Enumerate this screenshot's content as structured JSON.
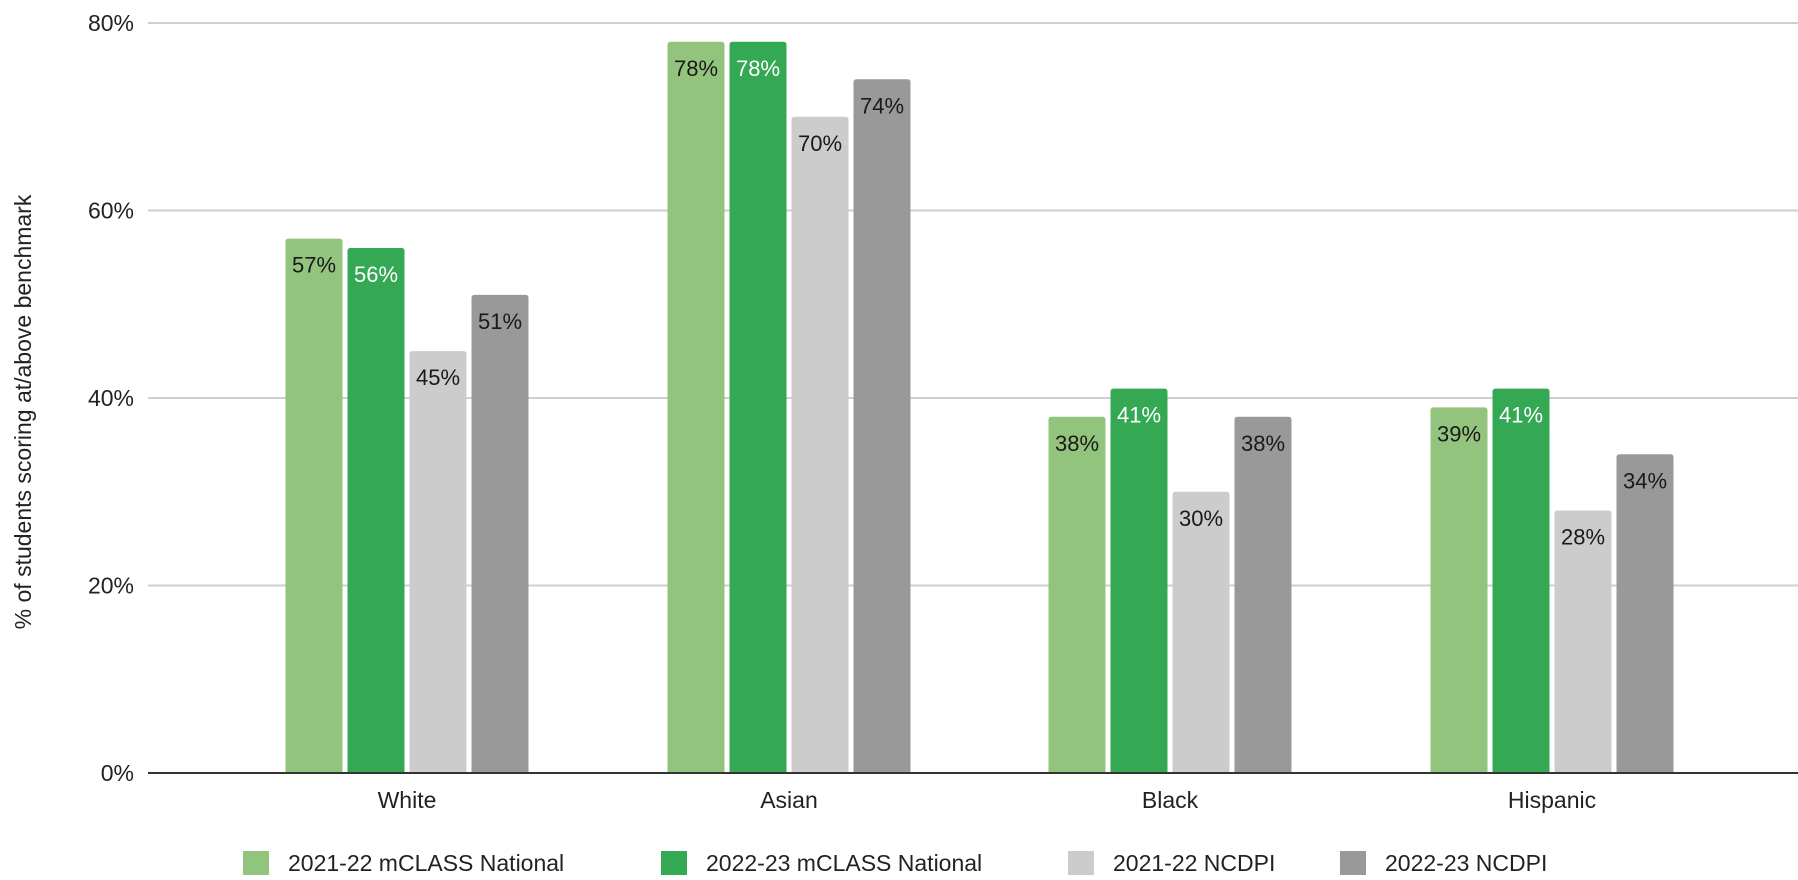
{
  "chart_data": {
    "type": "bar",
    "ylabel": "% of students scoring at/above benchmark",
    "xlabel": "",
    "ylim": [
      0,
      80
    ],
    "yticks": [
      0,
      20,
      40,
      60,
      80
    ],
    "ytick_labels": [
      "0%",
      "20%",
      "40%",
      "60%",
      "80%"
    ],
    "categories": [
      "White",
      "Asian",
      "Black",
      "Hispanic"
    ],
    "grid": true,
    "legend_position": "bottom",
    "series": [
      {
        "name": "2021-22 mCLASS National",
        "color": "#93c47d",
        "label_color": "#1a1a1a",
        "values": [
          57,
          78,
          38,
          39
        ],
        "labels": [
          "57%",
          "78%",
          "38%",
          "39%"
        ]
      },
      {
        "name": "2022-23 mCLASS National",
        "color": "#34a853",
        "label_color": "#ffffff",
        "values": [
          56,
          78,
          41,
          41
        ],
        "labels": [
          "56%",
          "78%",
          "41%",
          "41%"
        ]
      },
      {
        "name": "2021-22 NCDPI",
        "color": "#cccccc",
        "label_color": "#1a1a1a",
        "values": [
          45,
          70,
          30,
          28
        ],
        "labels": [
          "45%",
          "70%",
          "30%",
          "28%"
        ]
      },
      {
        "name": "2022-23 NCDPI",
        "color": "#999999",
        "label_color": "#1a1a1a",
        "values": [
          51,
          74,
          38,
          34
        ],
        "labels": [
          "51%",
          "74%",
          "38%",
          "34%"
        ]
      }
    ]
  }
}
